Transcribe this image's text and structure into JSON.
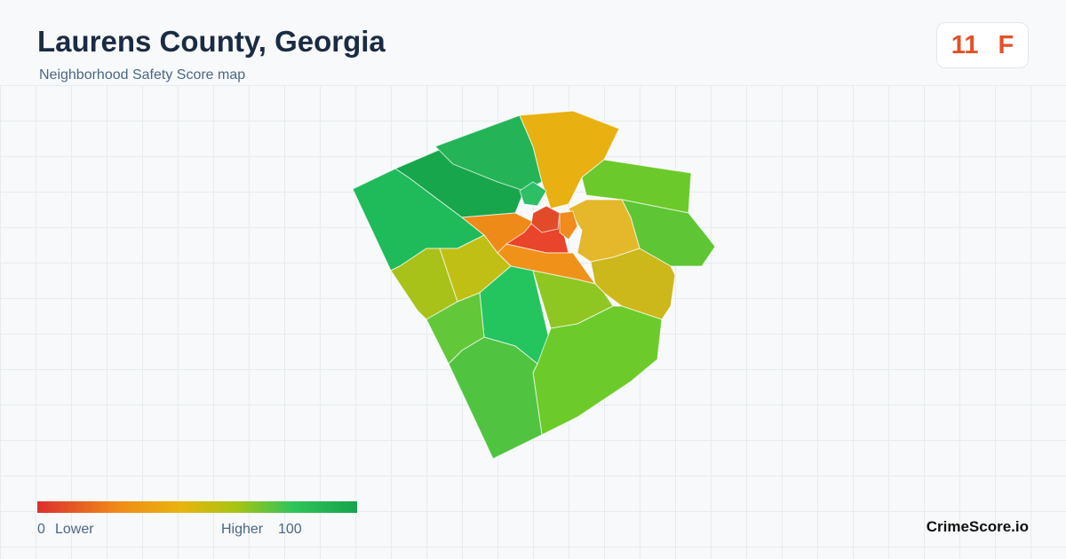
{
  "header": {
    "title": "Laurens County, Georgia",
    "subtitle": "Neighborhood Safety Score map"
  },
  "score": {
    "value": 11,
    "grade": "F"
  },
  "legend": {
    "min": 0,
    "min_label": "Lower",
    "max_label": "Higher",
    "max": 100
  },
  "brand": "CrimeScore.io"
}
